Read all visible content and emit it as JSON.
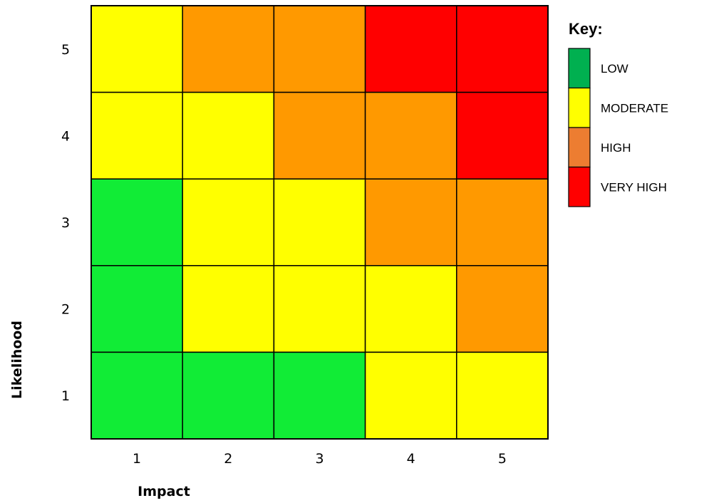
{
  "chart_data": {
    "type": "heatmap",
    "xlabel": "Impact",
    "ylabel": "Likelihood",
    "x_categories": [
      "1",
      "2",
      "3",
      "4",
      "5"
    ],
    "y_categories": [
      "1",
      "2",
      "3",
      "4",
      "5"
    ],
    "grid_rows_top_to_bottom": [
      {
        "likelihood": "5",
        "cells": [
          "MODERATE",
          "HIGH",
          "HIGH",
          "VERY HIGH",
          "VERY HIGH"
        ]
      },
      {
        "likelihood": "4",
        "cells": [
          "MODERATE",
          "MODERATE",
          "HIGH",
          "HIGH",
          "VERY HIGH"
        ]
      },
      {
        "likelihood": "3",
        "cells": [
          "LOW",
          "MODERATE",
          "MODERATE",
          "HIGH",
          "HIGH"
        ]
      },
      {
        "likelihood": "2",
        "cells": [
          "LOW",
          "MODERATE",
          "MODERATE",
          "MODERATE",
          "HIGH"
        ]
      },
      {
        "likelihood": "1",
        "cells": [
          "LOW",
          "LOW",
          "LOW",
          "MODERATE",
          "MODERATE"
        ]
      }
    ],
    "cell_colors": {
      "LOW": "#11ec36",
      "MODERATE": "#ffff00",
      "HIGH": "#ff9900",
      "VERY HIGH": "#ff0000"
    },
    "legend": {
      "title": "Key:",
      "placement": "right",
      "items": [
        {
          "label": "LOW",
          "color": "#00b050"
        },
        {
          "label": "MODERATE",
          "color": "#ffff00"
        },
        {
          "label": "HIGH",
          "color": "#ed7d31"
        },
        {
          "label": "VERY HIGH",
          "color": "#ff0000"
        }
      ]
    }
  }
}
